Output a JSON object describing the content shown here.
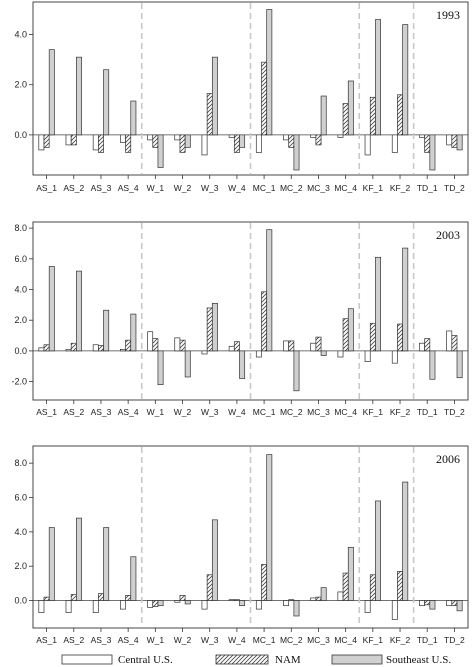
{
  "chart_data": [
    {
      "type": "bar",
      "title": "1993",
      "categories": [
        "AS_1",
        "AS_2",
        "AS_3",
        "AS_4",
        "W_1",
        "W_2",
        "W_3",
        "W_4",
        "MC_1",
        "MC_2",
        "MC_3",
        "MC_4",
        "KF_1",
        "KF_2",
        "TD_1",
        "TD_2"
      ],
      "groups": [
        4,
        4,
        4,
        2,
        2
      ],
      "yticks": [
        0.0,
        2.0,
        4.0
      ],
      "ytick_labels": [
        "0.0",
        "2.0",
        "4.0"
      ],
      "ylim": [
        -1.6,
        5.3
      ],
      "grid": false,
      "series": [
        {
          "name": "Central U.S.",
          "values": [
            -0.6,
            -0.4,
            -0.6,
            -0.3,
            -0.2,
            -0.2,
            -0.8,
            -0.1,
            -0.7,
            -0.2,
            -0.1,
            -0.1,
            -0.8,
            -0.7,
            -0.1,
            -0.4
          ]
        },
        {
          "name": "NAM",
          "values": [
            -0.5,
            -0.4,
            -0.7,
            -0.7,
            -0.5,
            -0.7,
            1.65,
            -0.7,
            2.9,
            -0.5,
            -0.4,
            1.25,
            1.5,
            1.6,
            -0.7,
            -0.5
          ]
        },
        {
          "name": "Southeast U.S.",
          "values": [
            3.4,
            3.1,
            2.6,
            1.35,
            -1.3,
            -0.5,
            3.1,
            -0.5,
            5.0,
            -1.4,
            1.55,
            2.15,
            4.6,
            4.4,
            -1.4,
            -0.6
          ]
        }
      ]
    },
    {
      "type": "bar",
      "title": "2003",
      "categories": [
        "AS_1",
        "AS_2",
        "AS_3",
        "AS_4",
        "W_1",
        "W_2",
        "W_3",
        "W_4",
        "MC_1",
        "MC_2",
        "MC_3",
        "MC_4",
        "KF_1",
        "KF_2",
        "TD_1",
        "TD_2"
      ],
      "groups": [
        4,
        4,
        4,
        2,
        2
      ],
      "yticks": [
        -2.0,
        0.0,
        2.0,
        4.0,
        6.0,
        8.0
      ],
      "ytick_labels": [
        "-2.0",
        "0.0",
        "2.0",
        "4.0",
        "6.0",
        "8.0"
      ],
      "ylim": [
        -3.2,
        8.4
      ],
      "grid": false,
      "series": [
        {
          "name": "Central U.S.",
          "values": [
            0.2,
            0.1,
            0.4,
            0.1,
            1.25,
            0.85,
            -0.2,
            0.3,
            -0.4,
            0.65,
            0.5,
            -0.4,
            -0.7,
            -0.8,
            0.5,
            1.3
          ]
        },
        {
          "name": "NAM",
          "values": [
            0.4,
            0.5,
            0.35,
            0.7,
            0.8,
            0.7,
            2.8,
            0.6,
            3.85,
            0.65,
            0.9,
            2.1,
            1.8,
            1.75,
            0.8,
            1.0
          ]
        },
        {
          "name": "Southeast U.S.",
          "values": [
            5.5,
            5.2,
            2.65,
            2.4,
            -2.2,
            -1.7,
            3.1,
            -1.8,
            7.9,
            -2.6,
            -0.3,
            2.75,
            6.1,
            6.7,
            -1.85,
            -1.75
          ]
        }
      ]
    },
    {
      "type": "bar",
      "title": "2006",
      "categories": [
        "AS_1",
        "AS_2",
        "AS_3",
        "AS_4",
        "W_1",
        "W_2",
        "W_3",
        "W_4",
        "MC_1",
        "MC_2",
        "MC_3",
        "MC_4",
        "KF_1",
        "KF_2",
        "TD_1",
        "TD_2"
      ],
      "groups": [
        4,
        4,
        4,
        2,
        2
      ],
      "yticks": [
        0.0,
        2.0,
        4.0,
        6.0,
        8.0
      ],
      "ytick_labels": [
        "0.0",
        "2.0",
        "4.0",
        "6.0",
        "8.0"
      ],
      "ylim": [
        -1.6,
        9.0
      ],
      "grid": false,
      "series": [
        {
          "name": "Central U.S.",
          "values": [
            -0.7,
            -0.7,
            -0.7,
            -0.5,
            -0.4,
            -0.1,
            -0.5,
            0.05,
            -0.5,
            -0.3,
            0.15,
            0.5,
            -0.7,
            -1.1,
            -0.3,
            -0.3
          ]
        },
        {
          "name": "NAM",
          "values": [
            0.2,
            0.35,
            0.4,
            0.3,
            -0.35,
            0.3,
            1.5,
            0.05,
            2.1,
            0.05,
            0.2,
            1.6,
            1.5,
            1.7,
            -0.25,
            -0.3
          ]
        },
        {
          "name": "Southeast U.S.",
          "values": [
            4.25,
            4.8,
            4.25,
            2.55,
            -0.3,
            -0.2,
            4.7,
            -0.3,
            8.5,
            -0.9,
            0.75,
            3.1,
            5.8,
            6.9,
            -0.5,
            -0.6
          ]
        }
      ]
    }
  ],
  "legend": {
    "items": [
      {
        "label": "Central U.S.",
        "fill": "#ffffff",
        "pattern": "none"
      },
      {
        "label": "NAM",
        "fill": "#ffffff",
        "pattern": "hatch"
      },
      {
        "label": "Southeast U.S.",
        "fill": "#d0d0d0",
        "pattern": "none"
      }
    ]
  },
  "colors": {
    "central": "#ffffff",
    "southeast": "#d0d0d0",
    "outline": "#333333",
    "separator": "#c8c8c8"
  }
}
